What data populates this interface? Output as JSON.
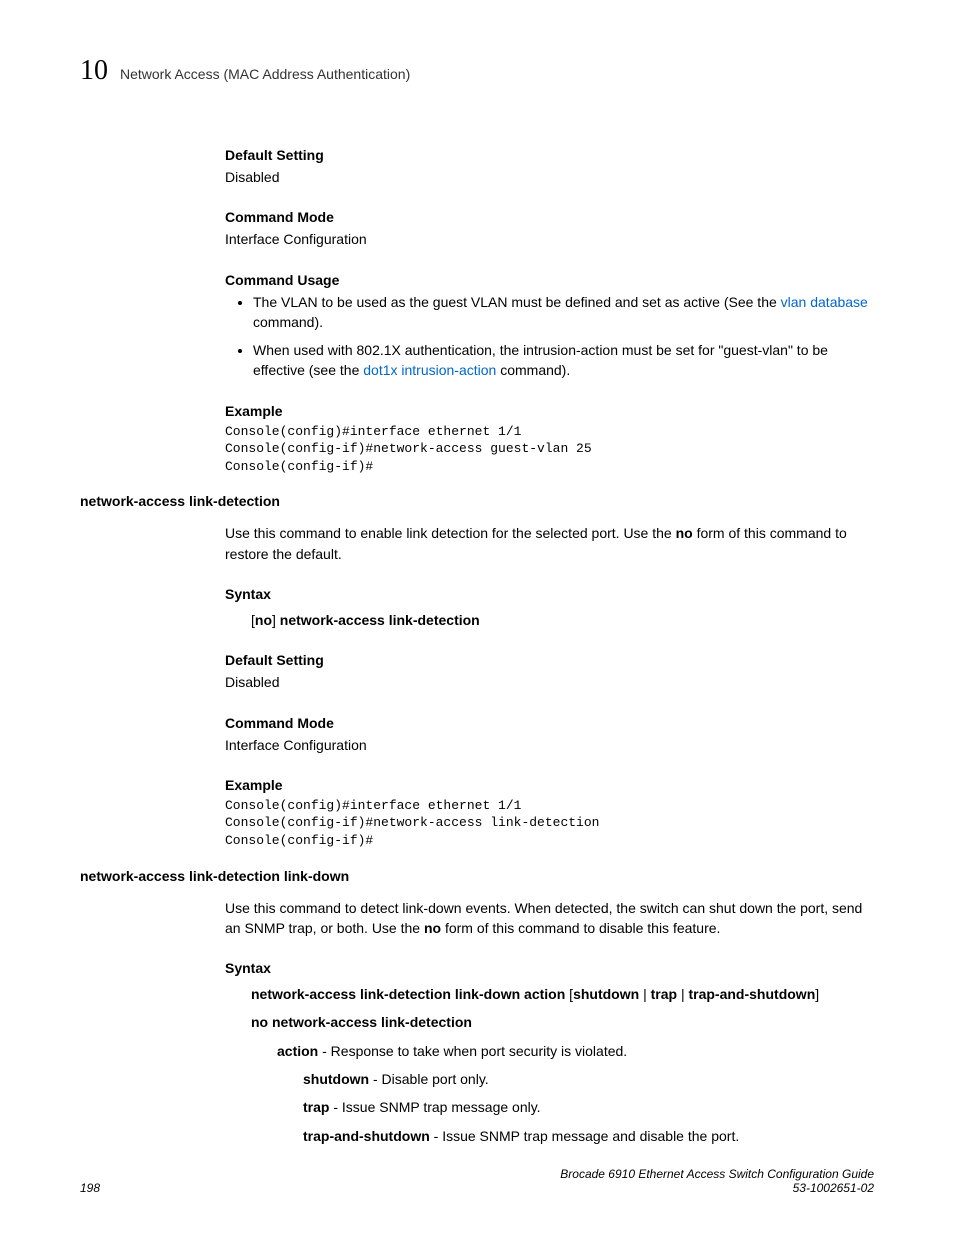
{
  "header": {
    "chapter_num": "10",
    "chapter_title": "Network Access (MAC Address Authentication)"
  },
  "sec1": {
    "h_default": "Default Setting",
    "default_val": "Disabled",
    "h_mode": "Command Mode",
    "mode_val": "Interface Configuration",
    "h_usage": "Command Usage",
    "bullet1_a": "The VLAN to be used as the guest VLAN must be defined and set as active (See the ",
    "bullet1_link": "vlan database",
    "bullet1_b": " command).",
    "bullet2_a": "When used with 802.1X authentication, the intrusion-action must be set for \"guest-vlan\" to be effective (see the ",
    "bullet2_link": "dot1x intrusion-action",
    "bullet2_b": " command).",
    "h_example": "Example",
    "code": "Console(config)#interface ethernet 1/1\nConsole(config-if)#network-access guest-vlan 25\nConsole(config-if)#"
  },
  "sec2": {
    "cmd_name": "network-access link-detection",
    "desc_a": "Use this command to enable link detection for the selected port. Use the ",
    "desc_bold": "no",
    "desc_b": " form of this command to restore the default.",
    "h_syntax": "Syntax",
    "syntax_a": "[",
    "syntax_no": "no",
    "syntax_b": "] ",
    "syntax_cmd": "network-access link-detection",
    "h_default": "Default Setting",
    "default_val": "Disabled",
    "h_mode": "Command Mode",
    "mode_val": "Interface Configuration",
    "h_example": "Example",
    "code": "Console(config)#interface ethernet 1/1\nConsole(config-if)#network-access link-detection\nConsole(config-if)#"
  },
  "sec3": {
    "cmd_name": "network-access link-detection link-down",
    "desc_a": "Use this command to detect link-down events. When detected, the switch can shut down the port, send an SNMP trap, or both. Use the ",
    "desc_bold": "no",
    "desc_b": " form of this command to disable this feature.",
    "h_syntax": "Syntax",
    "syntax1_a": "network-access link-detection link-down action",
    "syntax1_b": " [",
    "syntax1_c": "shutdown",
    "syntax1_d": " | ",
    "syntax1_e": "trap",
    "syntax1_f": " | ",
    "syntax1_g": "trap-and-shutdown",
    "syntax1_h": "]",
    "syntax2": "no network-access link-detection",
    "action_b": "action",
    "action_t": " - Response to take when port security is violated.",
    "shutdown_b": "shutdown",
    "shutdown_t": " - Disable port only.",
    "trap_b": "trap",
    "trap_t": " - Issue SNMP trap message only.",
    "tas_b": "trap-and-shutdown",
    "tas_t": " - Issue SNMP trap message and disable the port."
  },
  "footer": {
    "page": "198",
    "title": "Brocade 6910 Ethernet Access Switch Configuration Guide",
    "docnum": "53-1002651-02"
  }
}
